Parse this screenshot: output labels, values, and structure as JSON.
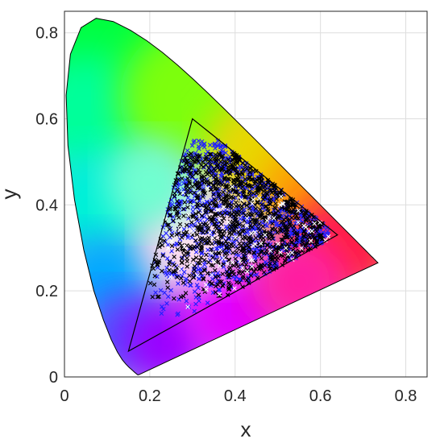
{
  "chart_data": {
    "type": "scatter",
    "title": "",
    "xlabel": "x",
    "ylabel": "y",
    "xlim": [
      0,
      0.85
    ],
    "ylim": [
      0,
      0.85
    ],
    "xticks": [
      0,
      0.2,
      0.4,
      0.6,
      0.8
    ],
    "yticks": [
      0,
      0.2,
      0.4,
      0.6,
      0.8
    ],
    "xtick_labels": [
      "0",
      "0.2",
      "0.4",
      "0.6",
      "0.8"
    ],
    "ytick_labels": [
      "0",
      "0.2",
      "0.4",
      "0.6",
      "0.8"
    ],
    "grid": true,
    "background": "CIE 1931 chromaticity diagram (spectral locus)",
    "spectral_locus": [
      [
        0.1741,
        0.005
      ],
      [
        0.1738,
        0.0049
      ],
      [
        0.173,
        0.0048
      ],
      [
        0.1726,
        0.0048
      ],
      [
        0.1721,
        0.0048
      ],
      [
        0.1714,
        0.0051
      ],
      [
        0.1703,
        0.0058
      ],
      [
        0.1689,
        0.0069
      ],
      [
        0.1669,
        0.0086
      ],
      [
        0.1644,
        0.0109
      ],
      [
        0.1611,
        0.0138
      ],
      [
        0.1566,
        0.0177
      ],
      [
        0.151,
        0.0227
      ],
      [
        0.144,
        0.0297
      ],
      [
        0.1355,
        0.0399
      ],
      [
        0.1241,
        0.0578
      ],
      [
        0.1096,
        0.0868
      ],
      [
        0.0913,
        0.1327
      ],
      [
        0.0687,
        0.2007
      ],
      [
        0.0454,
        0.295
      ],
      [
        0.0235,
        0.4127
      ],
      [
        0.0082,
        0.5384
      ],
      [
        0.0039,
        0.6548
      ],
      [
        0.0139,
        0.7502
      ],
      [
        0.0389,
        0.812
      ],
      [
        0.0743,
        0.8338
      ],
      [
        0.1142,
        0.8262
      ],
      [
        0.1547,
        0.8059
      ],
      [
        0.1929,
        0.7816
      ],
      [
        0.2296,
        0.7543
      ],
      [
        0.2658,
        0.7243
      ],
      [
        0.3016,
        0.6923
      ],
      [
        0.3373,
        0.6589
      ],
      [
        0.3731,
        0.6245
      ],
      [
        0.4087,
        0.5896
      ],
      [
        0.4441,
        0.5547
      ],
      [
        0.4788,
        0.5202
      ],
      [
        0.5125,
        0.4866
      ],
      [
        0.5448,
        0.4544
      ],
      [
        0.5752,
        0.4242
      ],
      [
        0.6029,
        0.3965
      ],
      [
        0.627,
        0.3725
      ],
      [
        0.6482,
        0.3514
      ],
      [
        0.6658,
        0.334
      ],
      [
        0.6801,
        0.3197
      ],
      [
        0.6915,
        0.3083
      ],
      [
        0.7006,
        0.2993
      ],
      [
        0.7079,
        0.292
      ],
      [
        0.714,
        0.2859
      ],
      [
        0.719,
        0.2809
      ],
      [
        0.723,
        0.277
      ],
      [
        0.726,
        0.274
      ],
      [
        0.7283,
        0.2717
      ],
      [
        0.73,
        0.27
      ],
      [
        0.7311,
        0.2689
      ],
      [
        0.732,
        0.268
      ],
      [
        0.7327,
        0.2673
      ],
      [
        0.7334,
        0.2666
      ],
      [
        0.734,
        0.266
      ],
      [
        0.7344,
        0.2656
      ],
      [
        0.7346,
        0.2654
      ],
      [
        0.7347,
        0.2653
      ]
    ],
    "gamut_triangle": [
      [
        0.15,
        0.06
      ],
      [
        0.3,
        0.6
      ],
      [
        0.64,
        0.33
      ]
    ],
    "series_colors": {
      "black": "#000000",
      "blue": "#2020ff",
      "white": "#ffffff"
    },
    "series": [
      {
        "marker": "x",
        "color": "#2020ff",
        "count": 900,
        "x_range": [
          0.14,
          0.62
        ],
        "y_range": [
          0.14,
          0.55
        ]
      },
      {
        "marker": "x",
        "color": "#000000",
        "count": 1100,
        "x_range": [
          0.16,
          0.61
        ],
        "y_range": [
          0.18,
          0.52
        ]
      },
      {
        "marker": "x",
        "color": "#ffffff",
        "count": 80,
        "x_range": [
          0.15,
          0.62
        ],
        "y_range": [
          0.13,
          0.45
        ]
      }
    ]
  }
}
